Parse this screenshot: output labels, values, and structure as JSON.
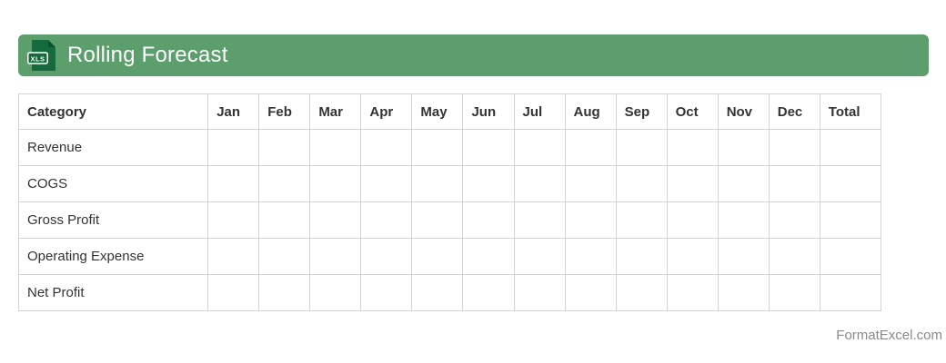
{
  "header": {
    "title": "Rolling Forecast",
    "icon_label": "XLS",
    "bar_color": "#5c9e6c",
    "icon_color": "#156b3d",
    "icon_fold_color": "#0a5130"
  },
  "table": {
    "columns": [
      "Category",
      "Jan",
      "Feb",
      "Mar",
      "Apr",
      "May",
      "Jun",
      "Jul",
      "Aug",
      "Sep",
      "Oct",
      "Nov",
      "Dec",
      "Total"
    ],
    "rows": [
      {
        "category": "Revenue",
        "values": [
          "",
          "",
          "",
          "",
          "",
          "",
          "",
          "",
          "",
          "",
          "",
          "",
          ""
        ]
      },
      {
        "category": "COGS",
        "values": [
          "",
          "",
          "",
          "",
          "",
          "",
          "",
          "",
          "",
          "",
          "",
          "",
          ""
        ]
      },
      {
        "category": "Gross Profit",
        "values": [
          "",
          "",
          "",
          "",
          "",
          "",
          "",
          "",
          "",
          "",
          "",
          "",
          ""
        ]
      },
      {
        "category": "Operating Expense",
        "values": [
          "",
          "",
          "",
          "",
          "",
          "",
          "",
          "",
          "",
          "",
          "",
          "",
          ""
        ]
      },
      {
        "category": "Net Profit",
        "values": [
          "",
          "",
          "",
          "",
          "",
          "",
          "",
          "",
          "",
          "",
          "",
          "",
          ""
        ]
      }
    ],
    "border_color": "#d4d4d4"
  },
  "footer": {
    "credit": "FormatExcel.com"
  }
}
